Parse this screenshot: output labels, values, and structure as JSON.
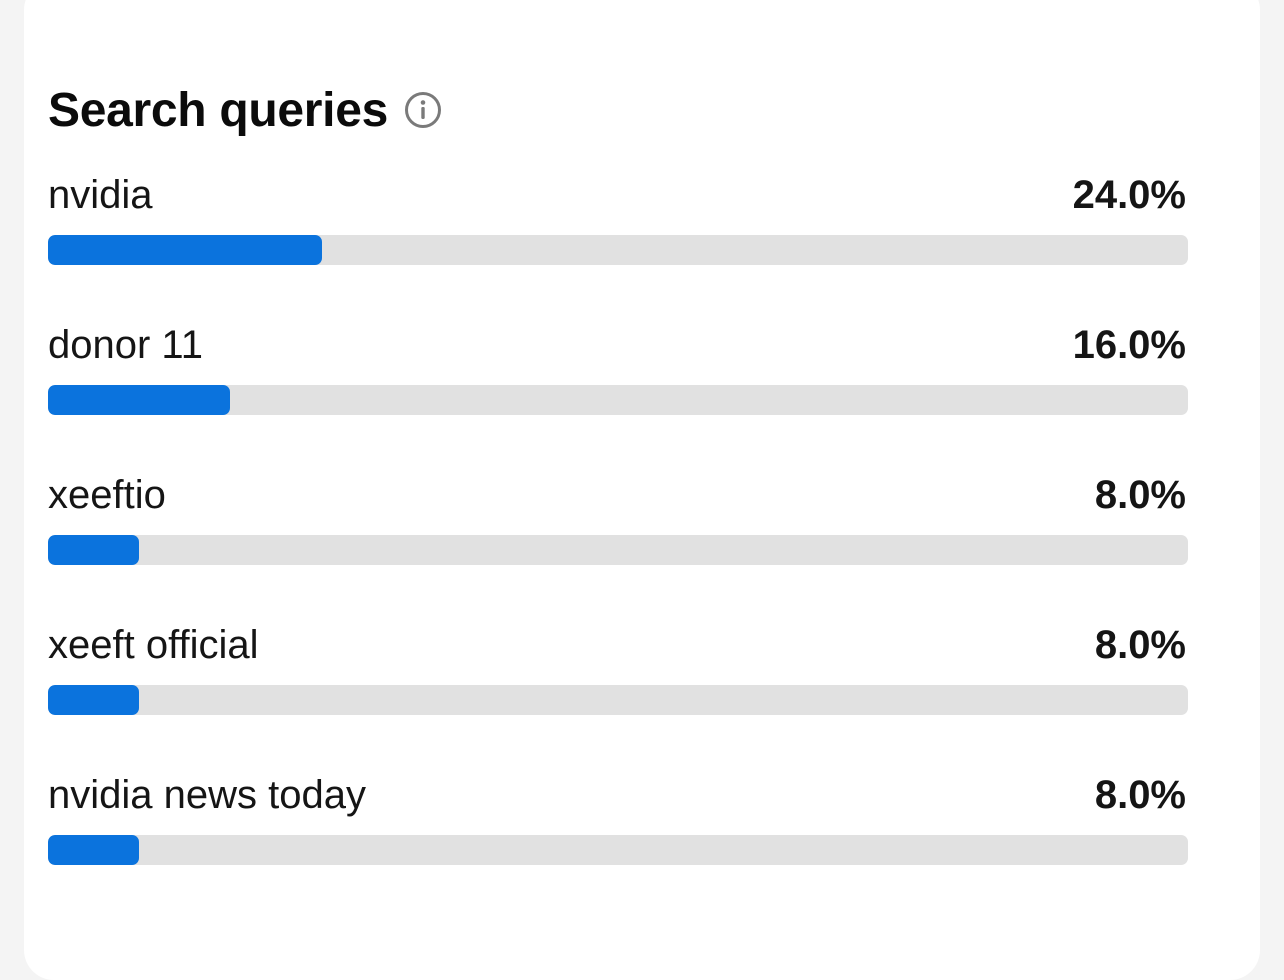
{
  "card": {
    "title": "Search queries",
    "info_icon": "info-circle-icon"
  },
  "colors": {
    "bar_fill": "#0b73dd",
    "bar_track": "#e1e1e1",
    "card_background": "#ffffff",
    "page_background": "#f4f4f4"
  },
  "queries": [
    {
      "label": "nvidia",
      "percent_text": "24.0%",
      "fill_fraction": 0.24
    },
    {
      "label": "donor 11",
      "percent_text": "16.0%",
      "fill_fraction": 0.16
    },
    {
      "label": "xeeftio",
      "percent_text": "8.0%",
      "fill_fraction": 0.08
    },
    {
      "label": "xeeft official",
      "percent_text": "8.0%",
      "fill_fraction": 0.08
    },
    {
      "label": "nvidia news today",
      "percent_text": "8.0%",
      "fill_fraction": 0.08
    }
  ]
}
